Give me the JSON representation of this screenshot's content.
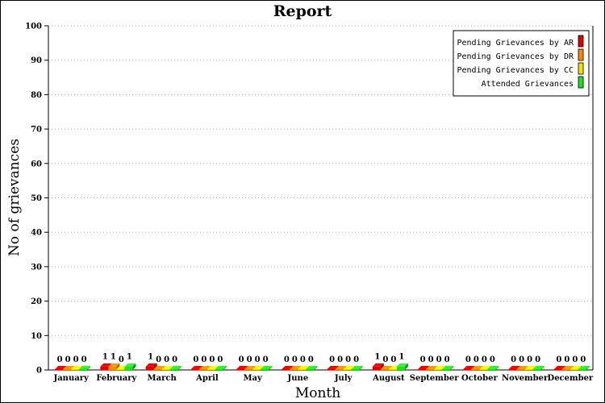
{
  "chart_data": {
    "type": "bar",
    "title": "Report",
    "xlabel": "Month",
    "ylabel": "No of grievances",
    "ylim": [
      0,
      100
    ],
    "yticks": [
      0,
      10,
      20,
      30,
      40,
      50,
      60,
      70,
      80,
      90,
      100
    ],
    "grid": "horizontal dotted",
    "legend_position": "top-right",
    "categories": [
      "January",
      "February",
      "March",
      "April",
      "May",
      "June",
      "July",
      "August",
      "September",
      "October",
      "November",
      "December"
    ],
    "series": [
      {
        "name": "Pending Grievances by AR",
        "color": "#dd0000",
        "values": [
          0,
          1,
          1,
          0,
          0,
          0,
          0,
          1,
          0,
          0,
          0,
          0
        ]
      },
      {
        "name": "Pending Grievances by DR",
        "color": "#ff8800",
        "values": [
          0,
          1,
          0,
          0,
          0,
          0,
          0,
          0,
          0,
          0,
          0,
          0
        ]
      },
      {
        "name": "Pending Grievances by CC",
        "color": "#f2e200",
        "values": [
          0,
          0,
          0,
          0,
          0,
          0,
          0,
          0,
          0,
          0,
          0,
          0
        ]
      },
      {
        "name": "Attended Grievances",
        "color": "#22dd22",
        "values": [
          0,
          1,
          0,
          0,
          0,
          0,
          0,
          1,
          0,
          0,
          0,
          0
        ]
      }
    ]
  }
}
